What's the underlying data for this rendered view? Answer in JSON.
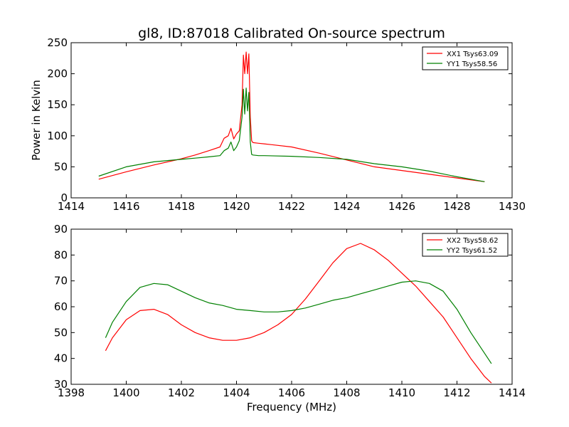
{
  "chart_data": [
    {
      "type": "line",
      "title": "gl8, ID:87018 Calibrated On-source spectrum",
      "xlabel": "",
      "ylabel": "Power in Kelvin",
      "xlim": [
        1414,
        1430
      ],
      "ylim": [
        0,
        250
      ],
      "xticks": [
        "1414",
        "1416",
        "1418",
        "1420",
        "1422",
        "1424",
        "1426",
        "1428",
        "1430"
      ],
      "yticks": [
        "0",
        "50",
        "100",
        "150",
        "200",
        "250"
      ],
      "legend_position": "top-right",
      "series": [
        {
          "name": "XX1 Tsys63.09",
          "color": "#ff0000",
          "x": [
            1415.0,
            1416.0,
            1417.0,
            1418.0,
            1418.5,
            1419.0,
            1419.4,
            1419.55,
            1419.7,
            1419.8,
            1419.9,
            1420.0,
            1420.1,
            1420.2,
            1420.25,
            1420.3,
            1420.35,
            1420.4,
            1420.45,
            1420.5,
            1420.55,
            1420.6,
            1420.8,
            1421.0,
            1422.0,
            1423.0,
            1424.0,
            1425.0,
            1426.0,
            1427.0,
            1428.0,
            1429.0
          ],
          "y": [
            30,
            42,
            53,
            63,
            69,
            76,
            82,
            96,
            100,
            112,
            95,
            103,
            108,
            150,
            230,
            200,
            235,
            200,
            232,
            130,
            92,
            89,
            88,
            87,
            82,
            72,
            61,
            50,
            44,
            38,
            32,
            26
          ]
        },
        {
          "name": "YY1 Tsys58.56",
          "color": "#008000",
          "x": [
            1415.0,
            1416.0,
            1417.0,
            1418.0,
            1418.5,
            1419.0,
            1419.4,
            1419.55,
            1419.7,
            1419.8,
            1419.9,
            1420.0,
            1420.1,
            1420.2,
            1420.25,
            1420.3,
            1420.35,
            1420.4,
            1420.45,
            1420.5,
            1420.55,
            1420.6,
            1420.8,
            1421.0,
            1422.0,
            1423.0,
            1424.0,
            1425.0,
            1426.0,
            1427.0,
            1428.0,
            1429.0
          ],
          "y": [
            35,
            50,
            58,
            62,
            64,
            66,
            68,
            76,
            80,
            90,
            76,
            82,
            92,
            130,
            175,
            135,
            177,
            140,
            170,
            90,
            70,
            69,
            68,
            68,
            67,
            65,
            62,
            55,
            50,
            43,
            34,
            26
          ]
        }
      ]
    },
    {
      "type": "line",
      "title": "",
      "xlabel": "Frequency (MHz)",
      "ylabel": "",
      "xlim": [
        1398,
        1414
      ],
      "ylim": [
        30,
        90
      ],
      "xticks": [
        "1398",
        "1400",
        "1402",
        "1404",
        "1406",
        "1408",
        "1410",
        "1412",
        "1414"
      ],
      "yticks": [
        "30",
        "40",
        "50",
        "60",
        "70",
        "80",
        "90"
      ],
      "legend_position": "top-right",
      "series": [
        {
          "name": "XX2 Tsys58.62",
          "color": "#ff0000",
          "x": [
            1399.25,
            1399.5,
            1400.0,
            1400.5,
            1401.0,
            1401.5,
            1402.0,
            1402.5,
            1403.0,
            1403.5,
            1404.0,
            1404.5,
            1405.0,
            1405.5,
            1406.0,
            1406.5,
            1407.0,
            1407.5,
            1408.0,
            1408.5,
            1409.0,
            1409.5,
            1410.0,
            1410.5,
            1411.0,
            1411.5,
            1412.0,
            1412.5,
            1413.0,
            1413.25
          ],
          "y": [
            43,
            48,
            55,
            58.5,
            59,
            57,
            53,
            50,
            48,
            47,
            47,
            48,
            50,
            53,
            57,
            63,
            70,
            77,
            82.5,
            84.5,
            82,
            78,
            73,
            68,
            62,
            56,
            48,
            40,
            33,
            30.5
          ]
        },
        {
          "name": "YY2 Tsys61.52",
          "color": "#008000",
          "x": [
            1399.25,
            1399.5,
            1400.0,
            1400.5,
            1401.0,
            1401.5,
            1402.0,
            1402.5,
            1403.0,
            1403.5,
            1404.0,
            1404.5,
            1405.0,
            1405.5,
            1406.0,
            1406.5,
            1407.0,
            1407.5,
            1408.0,
            1408.5,
            1409.0,
            1409.5,
            1410.0,
            1410.5,
            1411.0,
            1411.5,
            1412.0,
            1412.5,
            1413.0,
            1413.25
          ],
          "y": [
            48,
            54,
            62,
            67.5,
            69,
            68.5,
            66,
            63.5,
            61.5,
            60.5,
            59,
            58.5,
            58,
            58,
            58.5,
            59.5,
            61,
            62.5,
            63.5,
            65,
            66.5,
            68,
            69.5,
            70,
            69,
            66,
            59,
            50,
            42,
            38
          ]
        }
      ]
    }
  ]
}
